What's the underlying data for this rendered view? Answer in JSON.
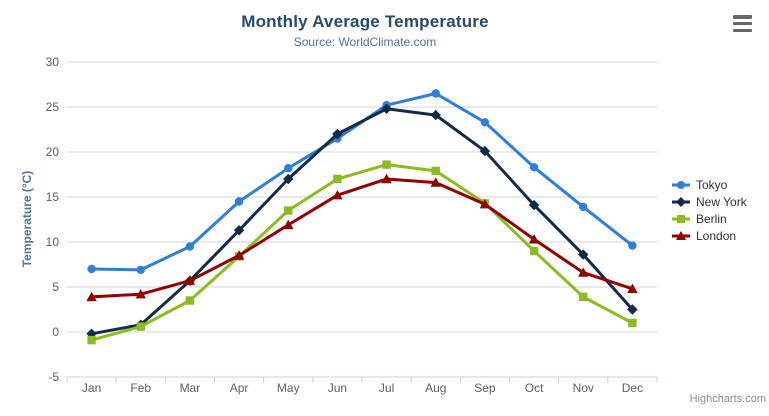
{
  "chart": {
    "title": "Monthly Average Temperature",
    "subtitle": "Source: WorldClimate.com",
    "credits": "Highcharts.com",
    "menu_icon": "hamburger-icon"
  },
  "colors": {
    "title": "#274b6d",
    "subtitle": "#4d759e",
    "axis_label": "#606060",
    "axis_line": "#c0d0e0",
    "grid": "#d6d6d6",
    "legend_text": "#333333",
    "credits": "#8c8c8c",
    "menu_icon": "#666666"
  },
  "chart_data": {
    "type": "line",
    "title": "Monthly Average Temperature",
    "subtitle": "Source: WorldClimate.com",
    "xlabel": "",
    "ylabel": "Temperature (°C)",
    "ylim": [
      -5,
      30
    ],
    "yticks": [
      -5,
      0,
      5,
      10,
      15,
      20,
      25,
      30
    ],
    "grid": true,
    "legend_position": "right",
    "categories": [
      "Jan",
      "Feb",
      "Mar",
      "Apr",
      "May",
      "Jun",
      "Jul",
      "Aug",
      "Sep",
      "Oct",
      "Nov",
      "Dec"
    ],
    "series": [
      {
        "name": "Tokyo",
        "color": "#2f7ed8",
        "marker": "circle",
        "values": [
          7.0,
          6.9,
          9.5,
          14.5,
          18.2,
          21.5,
          25.2,
          26.5,
          23.3,
          18.3,
          13.9,
          9.6
        ]
      },
      {
        "name": "New York",
        "color": "#122c47",
        "marker": "diamond",
        "values": [
          -0.2,
          0.8,
          5.7,
          11.3,
          17.0,
          22.0,
          24.8,
          24.1,
          20.1,
          14.1,
          8.6,
          2.5
        ]
      },
      {
        "name": "Berlin",
        "color": "#8bbc21",
        "marker": "square",
        "values": [
          -0.9,
          0.6,
          3.5,
          8.4,
          13.5,
          17.0,
          18.6,
          17.9,
          14.3,
          9.0,
          3.9,
          1.0
        ]
      },
      {
        "name": "London",
        "color": "#910000",
        "marker": "triangle",
        "values": [
          3.9,
          4.2,
          5.7,
          8.5,
          11.9,
          15.2,
          17.0,
          16.6,
          14.2,
          10.3,
          6.6,
          4.8
        ]
      }
    ]
  }
}
